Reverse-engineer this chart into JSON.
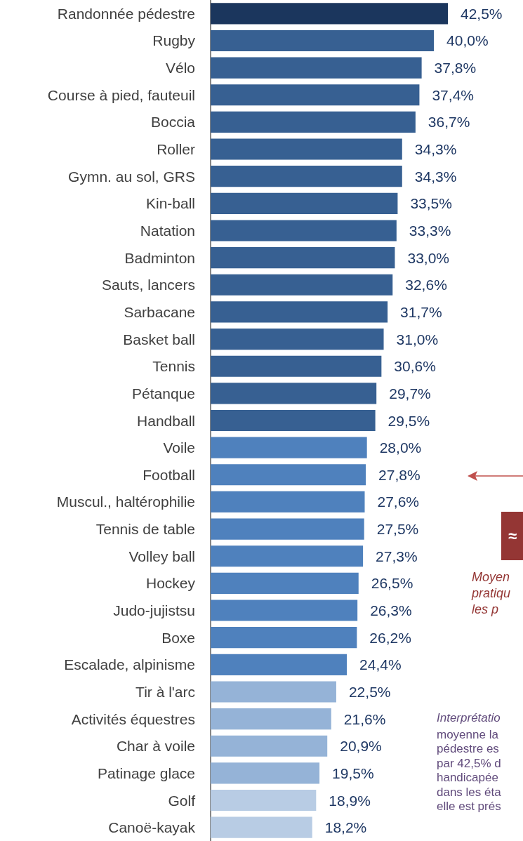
{
  "chart_data": {
    "type": "bar",
    "orientation": "horizontal",
    "categories": [
      "Randonnée pédestre",
      "Rugby",
      "Vélo",
      "Course à pied, fauteuil",
      "Boccia",
      "Roller",
      "Gymn. au sol, GRS",
      "Kin-ball",
      "Natation",
      "Badminton",
      "Sauts, lancers",
      "Sarbacane",
      "Basket ball",
      "Tennis",
      "Pétanque",
      "Handball",
      "Voile",
      "Football",
      "Muscul., haltérophilie",
      "Tennis de table",
      "Volley ball",
      "Hockey",
      "Judo-jujistsu",
      "Boxe",
      "Escalade, alpinisme",
      "Tir à l'arc",
      "Activités équestres",
      "Char à voile",
      "Patinage glace",
      "Golf",
      "Canoë-kayak"
    ],
    "values": [
      42.5,
      40.0,
      37.8,
      37.4,
      36.7,
      34.3,
      34.3,
      33.5,
      33.3,
      33.0,
      32.6,
      31.7,
      31.0,
      30.6,
      29.7,
      29.5,
      28.0,
      27.8,
      27.6,
      27.5,
      27.3,
      26.5,
      26.3,
      26.2,
      24.4,
      22.5,
      21.6,
      20.9,
      19.5,
      18.9,
      18.2
    ],
    "value_labels": [
      "42,5%",
      "40,0%",
      "37,8%",
      "37,4%",
      "36,7%",
      "34,3%",
      "34,3%",
      "33,5%",
      "33,3%",
      "33,0%",
      "32,6%",
      "31,7%",
      "31,0%",
      "30,6%",
      "29,7%",
      "29,5%",
      "28,0%",
      "27,8%",
      "27,6%",
      "27,5%",
      "27,3%",
      "26,5%",
      "26,3%",
      "26,2%",
      "24,4%",
      "22,5%",
      "21,6%",
      "20,9%",
      "19,5%",
      "18,9%",
      "18,2%"
    ],
    "colors": [
      "#1b365d",
      "#376092",
      "#376092",
      "#376092",
      "#376092",
      "#376092",
      "#376092",
      "#376092",
      "#376092",
      "#376092",
      "#376092",
      "#376092",
      "#376092",
      "#376092",
      "#376092",
      "#376092",
      "#4f81bd",
      "#4f81bd",
      "#4f81bd",
      "#4f81bd",
      "#4f81bd",
      "#4f81bd",
      "#4f81bd",
      "#4f81bd",
      "#4f81bd",
      "#95b3d7",
      "#95b3d7",
      "#95b3d7",
      "#95b3d7",
      "#b8cce4",
      "#b8cce4"
    ],
    "annotations": [
      "≈",
      "Moyen\npratiqu\nles p",
      "Interprétatio",
      "moyenne la\npédestre es\npar 42,5% d\nhandicapée\ndans les éta\nelle est prés"
    ]
  }
}
